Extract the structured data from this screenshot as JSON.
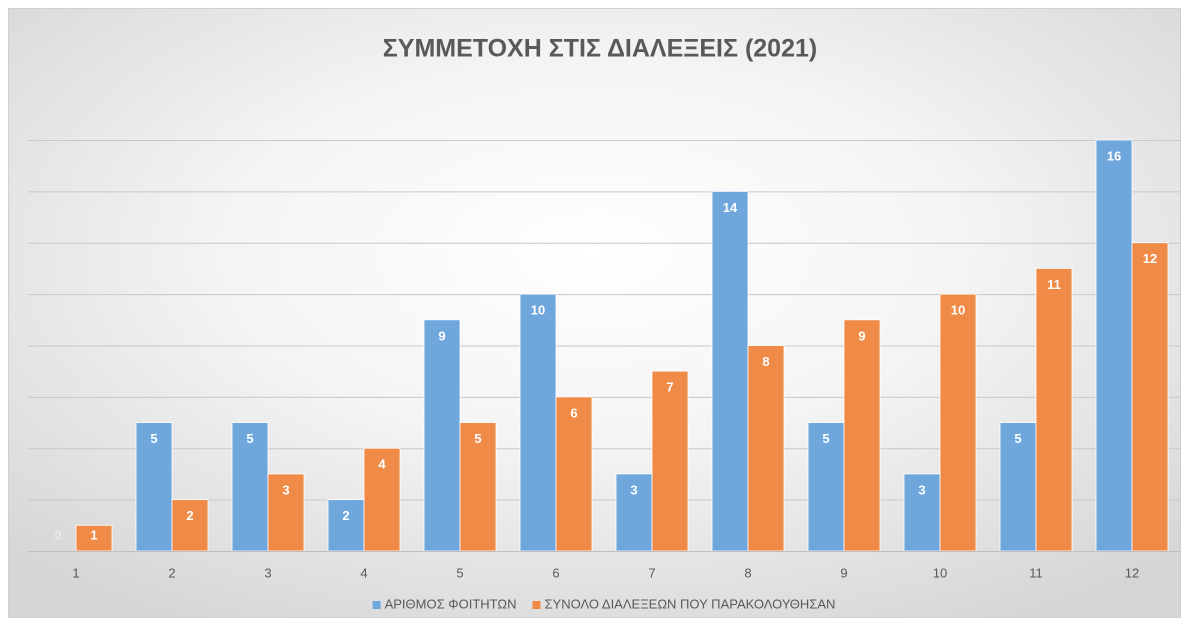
{
  "chart_data": {
    "type": "bar",
    "title": "ΣΥΜΜΕΤΟΧΗ ΣΤΙΣ ΔΙΑΛΕΞΕΙΣ (2021)",
    "categories": [
      "1",
      "2",
      "3",
      "4",
      "5",
      "6",
      "7",
      "8",
      "9",
      "10",
      "11",
      "12"
    ],
    "series": [
      {
        "name": "ΑΡΙΘΜΟΣ ΦΟΙΤΗΤΩΝ",
        "color": "#6fa6dc",
        "values": [
          0,
          5,
          5,
          2,
          9,
          10,
          3,
          14,
          5,
          3,
          5,
          16
        ]
      },
      {
        "name": "ΣΥΝΟΛΟ ΔΙΑΛΕΞΕΩΝ ΠΟΥ ΠΑΡΑΚΟΛΟΥΘΗΣΑΝ",
        "color": "#ef8a47",
        "values": [
          1,
          2,
          3,
          4,
          5,
          6,
          7,
          8,
          9,
          10,
          11,
          12
        ]
      }
    ],
    "ylim": [
      0,
      16
    ],
    "yticks": [
      0,
      2,
      4,
      6,
      8,
      10,
      12,
      14,
      16
    ],
    "grid": true,
    "legend": "bottom"
  }
}
